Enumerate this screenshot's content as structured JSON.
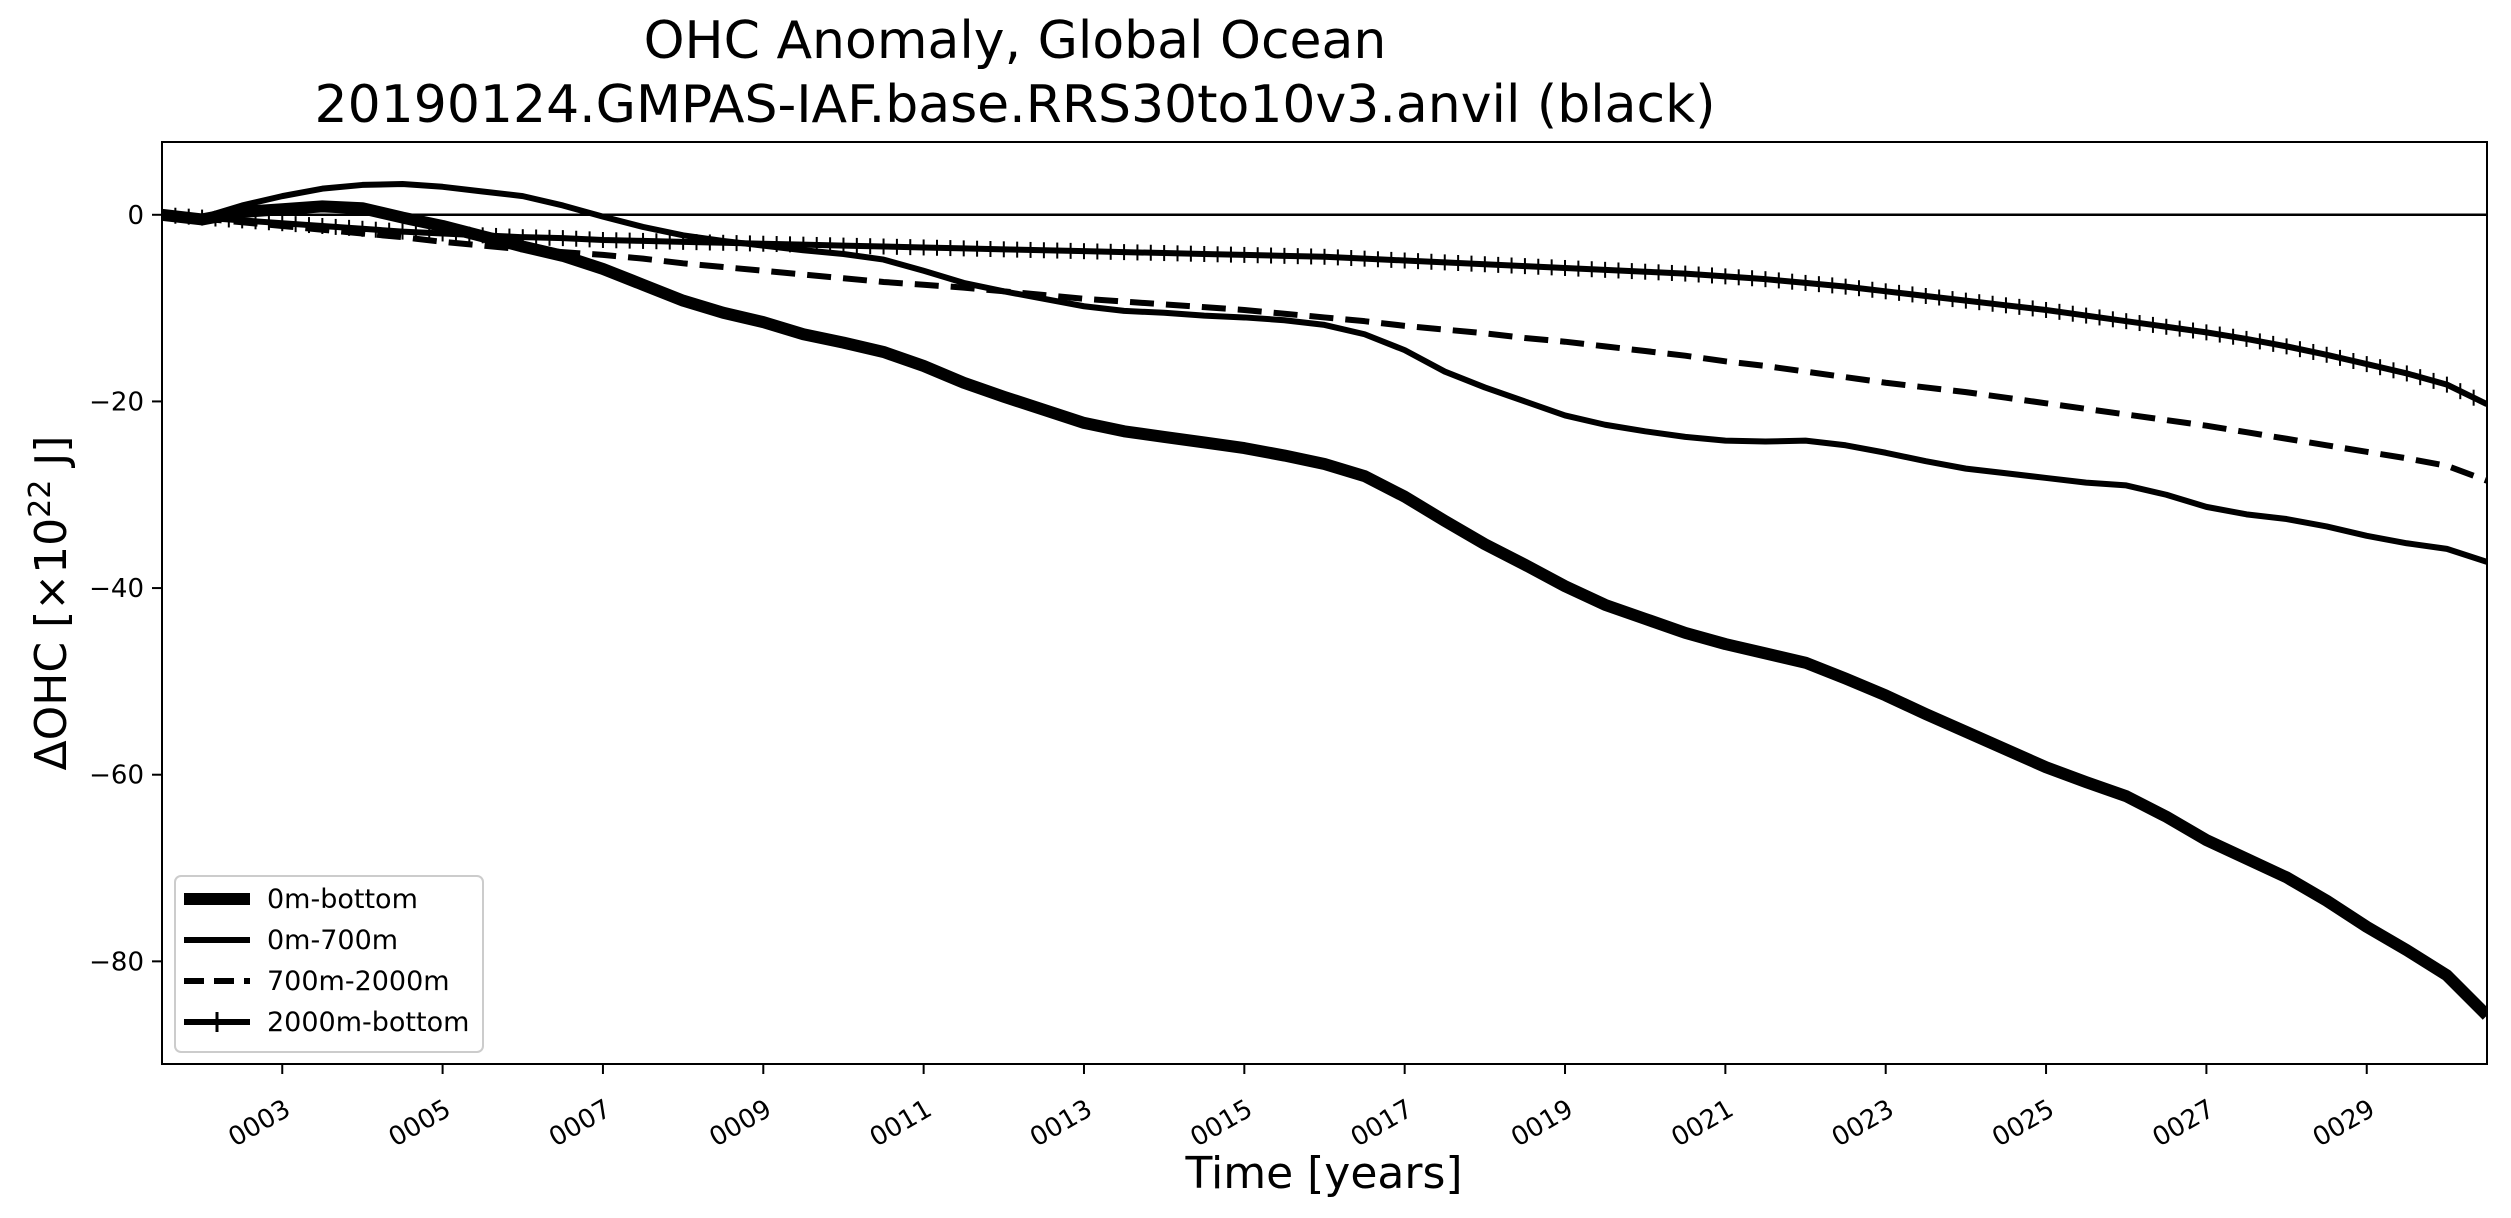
{
  "chart_data": {
    "type": "line",
    "title_lines": [
      "OHC Anomaly, Global Ocean",
      "20190124.GMPAS-IAF.base.RRS30to10v3.anvil (black)"
    ],
    "xlabel": "Time [years]",
    "ylabel_main": "ΔOHC [×10",
    "ylabel_exp": "22",
    "ylabel_unit": " J]",
    "xlim": [
      1.5,
      30.5
    ],
    "ylim": [
      -91,
      7.8
    ],
    "x_ticks": [
      3,
      5,
      7,
      9,
      11,
      13,
      15,
      17,
      19,
      21,
      23,
      25,
      27,
      29
    ],
    "x_tick_labels": [
      "0003",
      "0005",
      "0007",
      "0009",
      "0011",
      "0013",
      "0015",
      "0017",
      "0019",
      "0021",
      "0023",
      "0025",
      "0027",
      "0029"
    ],
    "y_ticks": [
      0,
      -20,
      -40,
      -60,
      -80
    ],
    "y_tick_labels": [
      "0",
      "−20",
      "−40",
      "−60",
      "−80"
    ],
    "zero_line": 0,
    "grid": false,
    "legend_position": "lower-left",
    "color": "#000000",
    "series": [
      {
        "name": "0m-bottom",
        "style": "thick-solid",
        "x": [
          1.5,
          2.0,
          2.5,
          3.0,
          3.5,
          4.0,
          4.5,
          5.0,
          5.5,
          6.0,
          6.5,
          7.0,
          7.5,
          8.0,
          8.5,
          9.0,
          9.5,
          10.0,
          10.5,
          11.0,
          11.5,
          12.0,
          12.5,
          13.0,
          13.5,
          14.0,
          14.5,
          15.0,
          15.5,
          16.0,
          16.5,
          17.0,
          17.5,
          18.0,
          18.5,
          19.0,
          19.5,
          20.0,
          20.5,
          21.0,
          21.5,
          22.0,
          22.5,
          23.0,
          23.5,
          24.0,
          24.5,
          25.0,
          25.5,
          26.0,
          26.5,
          27.0,
          27.5,
          28.0,
          28.5,
          29.0,
          29.5,
          30.0,
          30.5
        ],
        "y": [
          0,
          -0.5,
          0.3,
          0.6,
          0.9,
          0.7,
          -0.3,
          -1.2,
          -2.3,
          -3.4,
          -4.4,
          -5.8,
          -7.5,
          -9.2,
          -10.5,
          -11.5,
          -12.8,
          -13.7,
          -14.7,
          -16.2,
          -18.0,
          -19.5,
          -20.9,
          -22.3,
          -23.2,
          -23.8,
          -24.4,
          -25.0,
          -25.8,
          -26.7,
          -28.0,
          -30.2,
          -32.8,
          -35.3,
          -37.5,
          -39.8,
          -41.8,
          -43.3,
          -44.8,
          -46.0,
          -47.0,
          -48.0,
          -49.7,
          -51.5,
          -53.5,
          -55.4,
          -57.3,
          -59.2,
          -60.8,
          -62.3,
          -64.5,
          -67.0,
          -69.0,
          -71.0,
          -73.5,
          -76.3,
          -78.8,
          -81.5,
          -85.8
        ]
      },
      {
        "name": "0m-700m",
        "style": "medium-solid",
        "x": [
          1.5,
          2.0,
          2.5,
          3.0,
          3.5,
          4.0,
          4.5,
          5.0,
          5.5,
          6.0,
          6.5,
          7.0,
          7.5,
          8.0,
          8.5,
          9.0,
          9.5,
          10.0,
          10.5,
          11.0,
          11.5,
          12.0,
          12.5,
          13.0,
          13.5,
          14.0,
          14.5,
          15.0,
          15.5,
          16.0,
          16.5,
          17.0,
          17.5,
          18.0,
          18.5,
          19.0,
          19.5,
          20.0,
          20.5,
          21.0,
          21.5,
          22.0,
          22.5,
          23.0,
          23.5,
          24.0,
          24.5,
          25.0,
          25.5,
          26.0,
          26.5,
          27.0,
          27.5,
          28.0,
          28.5,
          29.0,
          29.5,
          30.0,
          30.5
        ],
        "y": [
          0,
          -0.3,
          1.0,
          2.0,
          2.8,
          3.2,
          3.3,
          3.0,
          2.5,
          2.0,
          1.0,
          -0.2,
          -1.3,
          -2.2,
          -2.8,
          -3.3,
          -3.8,
          -4.2,
          -4.8,
          -6.0,
          -7.3,
          -8.2,
          -9.0,
          -9.8,
          -10.3,
          -10.5,
          -10.8,
          -11.0,
          -11.3,
          -11.8,
          -12.8,
          -14.5,
          -16.8,
          -18.5,
          -20.0,
          -21.5,
          -22.5,
          -23.2,
          -23.8,
          -24.2,
          -24.3,
          -24.2,
          -24.7,
          -25.5,
          -26.4,
          -27.2,
          -27.7,
          -28.2,
          -28.7,
          -29.0,
          -30.0,
          -31.3,
          -32.1,
          -32.6,
          -33.4,
          -34.4,
          -35.2,
          -35.8,
          -37.2
        ]
      },
      {
        "name": "700m-2000m",
        "style": "dashed",
        "x": [
          1.5,
          2.0,
          2.5,
          3.0,
          3.5,
          4.0,
          4.5,
          5.0,
          5.5,
          6.0,
          6.5,
          7.0,
          7.5,
          8.0,
          8.5,
          9.0,
          9.5,
          10.0,
          10.5,
          11.0,
          11.5,
          12.0,
          12.5,
          13.0,
          13.5,
          14.0,
          14.5,
          15.0,
          15.5,
          16.0,
          16.5,
          17.0,
          17.5,
          18.0,
          18.5,
          19.0,
          19.5,
          20.0,
          20.5,
          21.0,
          21.5,
          22.0,
          22.5,
          23.0,
          23.5,
          24.0,
          24.5,
          25.0,
          25.5,
          26.0,
          26.5,
          27.0,
          27.5,
          28.0,
          28.5,
          29.0,
          29.5,
          30.0,
          30.5
        ],
        "y": [
          0,
          -0.4,
          -0.8,
          -1.2,
          -1.6,
          -2.0,
          -2.4,
          -2.9,
          -3.3,
          -3.7,
          -4.0,
          -4.3,
          -4.7,
          -5.2,
          -5.6,
          -6.0,
          -6.4,
          -6.8,
          -7.2,
          -7.5,
          -7.8,
          -8.2,
          -8.6,
          -9.0,
          -9.3,
          -9.6,
          -9.9,
          -10.2,
          -10.6,
          -11.0,
          -11.4,
          -11.9,
          -12.3,
          -12.7,
          -13.2,
          -13.6,
          -14.1,
          -14.6,
          -15.1,
          -15.7,
          -16.2,
          -16.8,
          -17.4,
          -18.0,
          -18.5,
          -19.0,
          -19.6,
          -20.2,
          -20.8,
          -21.4,
          -22.0,
          -22.6,
          -23.3,
          -24.0,
          -24.7,
          -25.4,
          -26.1,
          -26.9,
          -28.5
        ]
      },
      {
        "name": "2000m-bottom",
        "style": "solid-plus-markers",
        "x": [
          1.5,
          2.0,
          2.5,
          3.0,
          3.5,
          4.0,
          4.5,
          5.0,
          5.5,
          6.0,
          6.5,
          7.0,
          7.5,
          8.0,
          8.5,
          9.0,
          9.5,
          10.0,
          10.5,
          11.0,
          11.5,
          12.0,
          12.5,
          13.0,
          13.5,
          14.0,
          14.5,
          15.0,
          15.5,
          16.0,
          16.5,
          17.0,
          17.5,
          18.0,
          18.5,
          19.0,
          19.5,
          20.0,
          20.5,
          21.0,
          21.5,
          22.0,
          22.5,
          23.0,
          23.5,
          24.0,
          24.5,
          25.0,
          25.5,
          26.0,
          26.5,
          27.0,
          27.5,
          28.0,
          28.5,
          29.0,
          29.5,
          30.0,
          30.5
        ],
        "y": [
          0,
          -0.3,
          -0.6,
          -0.9,
          -1.2,
          -1.5,
          -1.8,
          -2.0,
          -2.2,
          -2.4,
          -2.5,
          -2.7,
          -2.8,
          -2.9,
          -3.0,
          -3.1,
          -3.2,
          -3.3,
          -3.4,
          -3.5,
          -3.6,
          -3.7,
          -3.8,
          -3.9,
          -4.0,
          -4.1,
          -4.2,
          -4.3,
          -4.4,
          -4.5,
          -4.7,
          -4.9,
          -5.1,
          -5.3,
          -5.5,
          -5.7,
          -5.9,
          -6.1,
          -6.3,
          -6.6,
          -6.9,
          -7.3,
          -7.7,
          -8.2,
          -8.7,
          -9.2,
          -9.7,
          -10.2,
          -10.8,
          -11.4,
          -12.0,
          -12.6,
          -13.3,
          -14.1,
          -15.0,
          -16.0,
          -17.0,
          -18.2,
          -20.3
        ]
      }
    ]
  }
}
